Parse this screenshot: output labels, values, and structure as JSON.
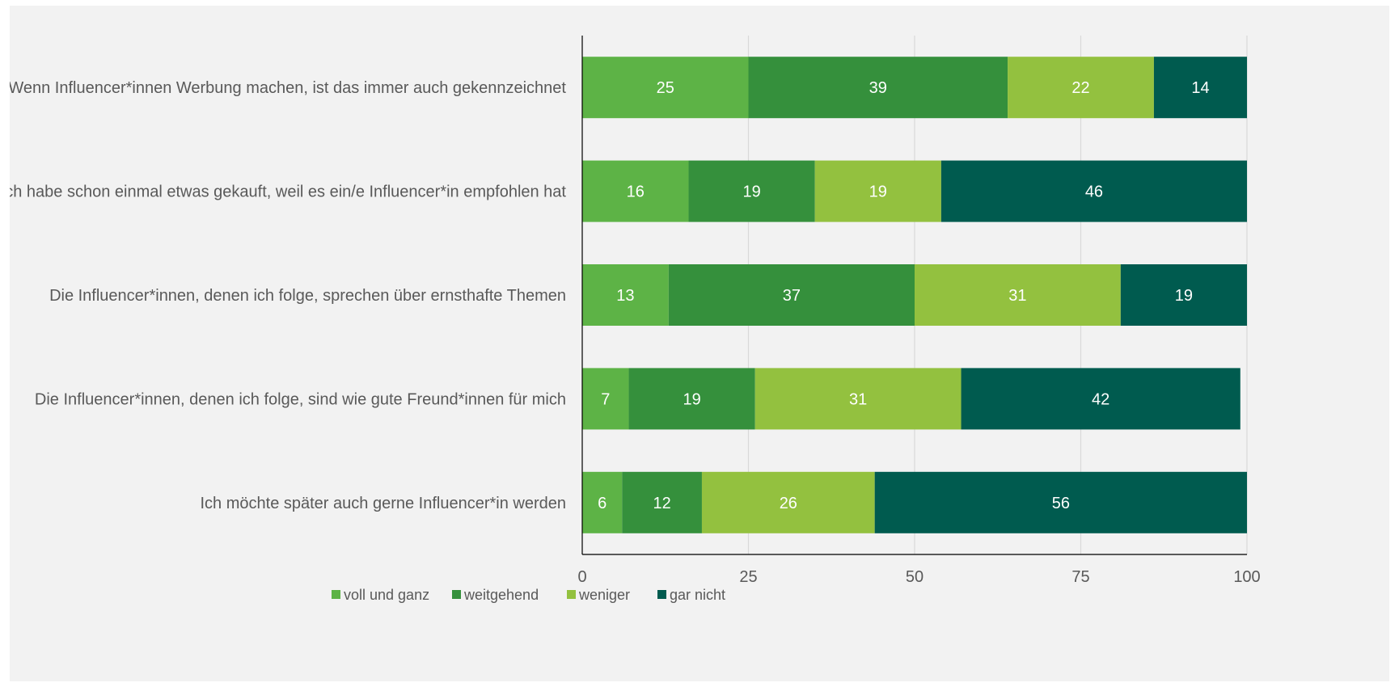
{
  "chart_data": {
    "type": "bar",
    "orientation": "horizontal",
    "stacked": true,
    "categories": [
      "Wenn Influencer*innen Werbung machen, ist das immer auch gekennzeichnet",
      "Ich habe schon einmal etwas gekauft, weil es ein/e Influencer*in empfohlen hat",
      "Die Influencer*innen, denen ich folge, sprechen über ernsthafte Themen",
      "Die Influencer*innen, denen ich folge, sind wie gute Freund*innen für mich",
      "Ich möchte später auch gerne Influencer*in werden"
    ],
    "series": [
      {
        "name": "voll und ganz",
        "color": "#5db346",
        "values": [
          25,
          16,
          13,
          7,
          6
        ]
      },
      {
        "name": "weitgehend",
        "color": "#35903c",
        "values": [
          39,
          19,
          37,
          19,
          12
        ]
      },
      {
        "name": "weniger",
        "color": "#93c13f",
        "values": [
          22,
          19,
          31,
          31,
          26
        ]
      },
      {
        "name": "gar nicht",
        "color": "#005b4f",
        "values": [
          14,
          46,
          19,
          42,
          56
        ]
      }
    ],
    "xlim": [
      0,
      100
    ],
    "xticks": [
      "0",
      "25",
      "50",
      "75",
      "100"
    ],
    "grid": true,
    "legend_position": "bottom",
    "data_labels": true,
    "title": "",
    "xlabel": "",
    "ylabel": ""
  }
}
